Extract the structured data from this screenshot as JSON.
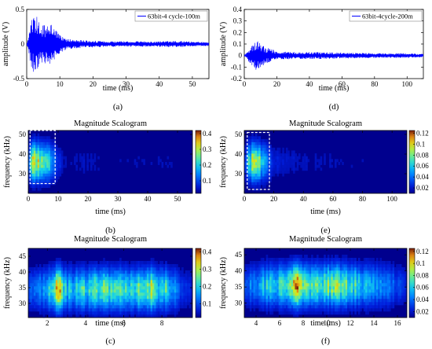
{
  "chart_data": [
    {
      "id": "a",
      "type": "line",
      "panel_label": "(a)",
      "xlabel": "time (ms)",
      "ylabel": "amplitude (V)",
      "xlim": [
        0,
        55
      ],
      "ylim": [
        -0.5,
        0.5
      ],
      "xticks": [
        0,
        10,
        20,
        30,
        40,
        50
      ],
      "yticks": [
        -0.5,
        0,
        0.5
      ],
      "series": [
        {
          "name": "63bit-4 cycle-100m",
          "color": "#0000ff"
        }
      ],
      "envelope": [
        [
          0,
          0.02
        ],
        [
          0.5,
          0.08
        ],
        [
          1.2,
          0.33
        ],
        [
          2.0,
          0.4
        ],
        [
          3.0,
          0.44
        ],
        [
          4.2,
          0.3
        ],
        [
          5.5,
          0.28
        ],
        [
          7.0,
          0.31
        ],
        [
          8.5,
          0.22
        ],
        [
          10,
          0.13
        ],
        [
          12,
          0.08
        ],
        [
          15,
          0.06
        ],
        [
          20,
          0.05
        ],
        [
          25,
          0.04
        ],
        [
          30,
          0.04
        ],
        [
          35,
          0.04
        ],
        [
          40,
          0.04
        ],
        [
          45,
          0.045
        ],
        [
          50,
          0.035
        ],
        [
          55,
          0.03
        ]
      ],
      "grid": false,
      "legend": "top-right"
    },
    {
      "id": "d",
      "type": "line",
      "panel_label": "(d)",
      "xlabel": "time (ms)",
      "ylabel": "amplitude (V)",
      "xlim": [
        0,
        110
      ],
      "ylim": [
        -0.2,
        0.4
      ],
      "xticks": [
        0,
        20,
        40,
        60,
        80,
        100
      ],
      "yticks": [
        -0.2,
        -0.1,
        0,
        0.1,
        0.2,
        0.3,
        0.4
      ],
      "series": [
        {
          "name": "63bit-4cycle-200m",
          "color": "#0000ff"
        }
      ],
      "envelope": [
        [
          0,
          0.01
        ],
        [
          2,
          0.03
        ],
        [
          4,
          0.09
        ],
        [
          6,
          0.12
        ],
        [
          8,
          0.13
        ],
        [
          10,
          0.11
        ],
        [
          13,
          0.07
        ],
        [
          16,
          0.06
        ],
        [
          20,
          0.04
        ],
        [
          30,
          0.03
        ],
        [
          40,
          0.03
        ],
        [
          50,
          0.03
        ],
        [
          60,
          0.025
        ],
        [
          70,
          0.025
        ],
        [
          80,
          0.02
        ],
        [
          90,
          0.02
        ],
        [
          100,
          0.02
        ],
        [
          110,
          0.015
        ]
      ],
      "grid": false,
      "legend": "top-right"
    },
    {
      "id": "b",
      "type": "heatmap",
      "panel_label": "(b)",
      "title": "Magnitude Scalogram",
      "xlabel": "time (ms)",
      "ylabel": "frequency (kHz)",
      "xlim": [
        0,
        55
      ],
      "ylim": [
        20,
        52
      ],
      "xticks": [
        0,
        10,
        20,
        30,
        40,
        50
      ],
      "yticks": [
        30,
        40,
        50
      ],
      "colorbar": {
        "min": 0.02,
        "max": 0.42,
        "ticks": [
          0.1,
          0.2,
          0.3,
          0.4
        ]
      },
      "freq_peak": 36,
      "column_energy": [
        [
          0,
          0.15
        ],
        [
          1,
          0.55
        ],
        [
          2,
          0.75
        ],
        [
          3,
          0.8
        ],
        [
          4,
          0.7
        ],
        [
          5,
          0.6
        ],
        [
          6,
          0.65
        ],
        [
          7,
          0.5
        ],
        [
          8,
          0.35
        ],
        [
          9,
          0.22
        ],
        [
          10,
          0.15
        ],
        [
          12,
          0.08
        ],
        [
          15,
          0.06
        ],
        [
          20,
          0.07
        ],
        [
          25,
          0.05
        ],
        [
          30,
          0.05
        ],
        [
          35,
          0.06
        ],
        [
          40,
          0.05
        ],
        [
          45,
          0.06
        ],
        [
          50,
          0.04
        ],
        [
          55,
          0.03
        ]
      ],
      "highlight_box": {
        "x": [
          0.6,
          9.0
        ],
        "y": [
          25,
          52
        ]
      }
    },
    {
      "id": "e",
      "type": "heatmap",
      "panel_label": "(e)",
      "title": "Magnitude Scalogram",
      "xlabel": "time (ms)",
      "ylabel": "frequency (kHz)",
      "xlim": [
        0,
        110
      ],
      "ylim": [
        20,
        52
      ],
      "xticks": [
        0,
        20,
        40,
        60,
        80,
        100
      ],
      "yticks": [
        30,
        40,
        50
      ],
      "colorbar": {
        "min": 0.01,
        "max": 0.125,
        "ticks": [
          0.02,
          0.04,
          0.06,
          0.08,
          0.1,
          0.12
        ]
      },
      "freq_peak": 36,
      "column_energy": [
        [
          0,
          0.1
        ],
        [
          3,
          0.45
        ],
        [
          6,
          0.7
        ],
        [
          8,
          0.75
        ],
        [
          10,
          0.6
        ],
        [
          13,
          0.4
        ],
        [
          16,
          0.25
        ],
        [
          20,
          0.12
        ],
        [
          30,
          0.08
        ],
        [
          40,
          0.07
        ],
        [
          50,
          0.06
        ],
        [
          60,
          0.06
        ],
        [
          70,
          0.05
        ],
        [
          80,
          0.05
        ],
        [
          90,
          0.04
        ],
        [
          100,
          0.04
        ],
        [
          110,
          0.03
        ]
      ],
      "highlight_box": {
        "x": [
          2,
          17
        ],
        "y": [
          22,
          51
        ]
      }
    },
    {
      "id": "c",
      "type": "heatmap",
      "panel_label": "(c)",
      "title": "Magnitude Scalogram",
      "xlabel": "time (ms)",
      "ylabel": "frequency (kHz)",
      "xlim": [
        1,
        9.6
      ],
      "ylim": [
        25.5,
        47.5
      ],
      "xticks": [
        2,
        4,
        6,
        8
      ],
      "yticks": [
        30,
        35,
        40,
        45
      ],
      "colorbar": {
        "min": 0.02,
        "max": 0.42,
        "ticks": [
          0.1,
          0.2,
          0.3,
          0.4
        ]
      },
      "freq_peak": 34.5,
      "column_energy": [
        [
          1.0,
          0.2
        ],
        [
          1.5,
          0.3
        ],
        [
          2.0,
          0.35
        ],
        [
          2.3,
          0.55
        ],
        [
          2.6,
          1.0
        ],
        [
          2.9,
          0.45
        ],
        [
          3.3,
          0.4
        ],
        [
          3.8,
          0.55
        ],
        [
          4.2,
          0.45
        ],
        [
          4.6,
          0.6
        ],
        [
          5.0,
          0.55
        ],
        [
          5.4,
          0.5
        ],
        [
          5.8,
          0.55
        ],
        [
          6.2,
          0.45
        ],
        [
          6.6,
          0.5
        ],
        [
          7.0,
          0.6
        ],
        [
          7.4,
          0.7
        ],
        [
          7.8,
          0.45
        ],
        [
          8.2,
          0.55
        ],
        [
          8.6,
          0.35
        ],
        [
          9.0,
          0.2
        ],
        [
          9.6,
          0.1
        ]
      ]
    },
    {
      "id": "f",
      "type": "heatmap",
      "panel_label": "(f)",
      "title": "Magnitude Scalogram",
      "xlabel": "time (ms)",
      "ylabel": "frequency (kHz)",
      "xlim": [
        3,
        16.8
      ],
      "ylim": [
        25.5,
        47
      ],
      "xticks": [
        4,
        6,
        8,
        10,
        12,
        14,
        16
      ],
      "yticks": [
        30,
        35,
        40,
        45
      ],
      "colorbar": {
        "min": 0.01,
        "max": 0.125,
        "ticks": [
          0.02,
          0.04,
          0.06,
          0.08,
          0.1,
          0.12
        ]
      },
      "freq_peak": 35.5,
      "column_energy": [
        [
          3.0,
          0.2
        ],
        [
          4.0,
          0.35
        ],
        [
          5.0,
          0.45
        ],
        [
          6.0,
          0.5
        ],
        [
          7.0,
          0.6
        ],
        [
          7.6,
          0.95
        ],
        [
          8.2,
          0.6
        ],
        [
          9.0,
          0.55
        ],
        [
          10.0,
          0.6
        ],
        [
          11.0,
          0.65
        ],
        [
          12.0,
          0.55
        ],
        [
          13.0,
          0.45
        ],
        [
          14.0,
          0.35
        ],
        [
          15.0,
          0.3
        ],
        [
          16.0,
          0.2
        ],
        [
          16.8,
          0.1
        ]
      ]
    }
  ]
}
